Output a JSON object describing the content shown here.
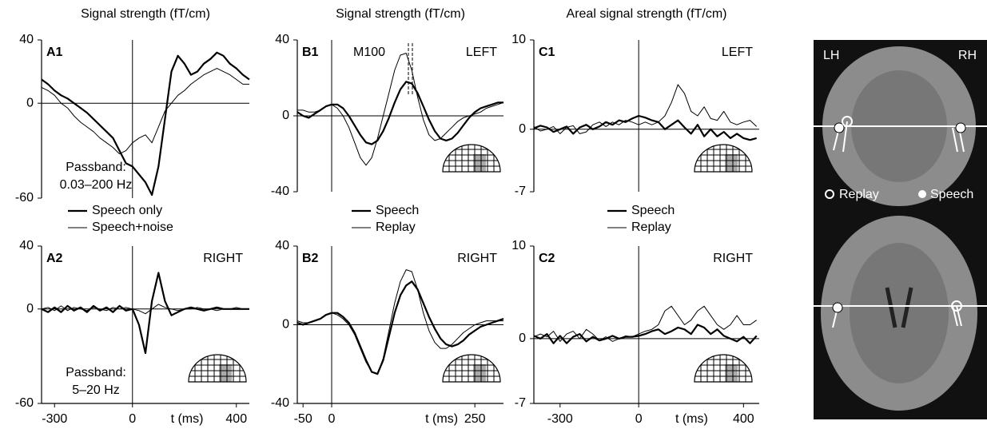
{
  "chart_data": [
    {
      "type": "line",
      "title": "Signal strength (fT/cm)",
      "panel_label": "A1",
      "passband": [
        "Passband:",
        "0.03–200 Hz"
      ],
      "x": [
        -350,
        -325,
        -300,
        -275,
        -250,
        -225,
        -200,
        -175,
        -150,
        -125,
        -100,
        -75,
        -50,
        -25,
        0,
        25,
        50,
        75,
        100,
        125,
        150,
        175,
        200,
        225,
        250,
        275,
        300,
        325,
        350,
        375,
        400,
        425,
        450
      ],
      "series": [
        {
          "name": "Speech only",
          "color": "#000000",
          "line_width": 2.2,
          "values": [
            15,
            12,
            8,
            5,
            3,
            0,
            -3,
            -6,
            -10,
            -14,
            -18,
            -22,
            -30,
            -38,
            -40,
            -45,
            -50,
            -58,
            -40,
            -10,
            20,
            30,
            25,
            18,
            20,
            25,
            28,
            32,
            30,
            25,
            22,
            18,
            15
          ]
        },
        {
          "name": "Speech+noise",
          "color": "#000000",
          "line_width": 1,
          "values": [
            10,
            8,
            5,
            0,
            -3,
            -8,
            -12,
            -15,
            -18,
            -22,
            -25,
            -28,
            -32,
            -30,
            -25,
            -22,
            -20,
            -25,
            -15,
            -5,
            0,
            5,
            8,
            12,
            15,
            18,
            20,
            22,
            20,
            18,
            15,
            12,
            12
          ]
        }
      ],
      "xlim": [
        -350,
        450
      ],
      "ylim": [
        -60,
        40
      ],
      "yticks": [
        -60,
        0,
        40
      ]
    },
    {
      "type": "line",
      "title": "Signal strength (fT/cm)",
      "panel_label": "B1",
      "side_label": "LEFT",
      "peak_label": "M100",
      "x": [
        -60,
        -50,
        -40,
        -30,
        -20,
        -10,
        0,
        10,
        20,
        30,
        40,
        50,
        60,
        70,
        80,
        90,
        100,
        110,
        120,
        130,
        140,
        150,
        160,
        170,
        180,
        190,
        200,
        210,
        220,
        230,
        240,
        250,
        260,
        270,
        280,
        290,
        300
      ],
      "series": [
        {
          "name": "Speech",
          "color": "#000000",
          "line_width": 2.2,
          "values": [
            2,
            0,
            -1,
            1,
            3,
            5,
            6,
            6,
            4,
            0,
            -5,
            -10,
            -14,
            -15,
            -13,
            -8,
            -1,
            7,
            14,
            18,
            17,
            12,
            5,
            -2,
            -8,
            -12,
            -13,
            -12,
            -9,
            -5,
            -1,
            2,
            4,
            5,
            6,
            7,
            7
          ]
        },
        {
          "name": "Replay",
          "color": "#000000",
          "line_width": 1,
          "values": [
            3,
            3,
            2,
            2,
            3,
            5,
            6,
            4,
            0,
            -6,
            -14,
            -22,
            -26,
            -22,
            -12,
            0,
            12,
            24,
            32,
            33,
            24,
            10,
            -2,
            -10,
            -13,
            -12,
            -9,
            -6,
            -3,
            -1,
            0,
            1,
            2,
            4,
            5,
            6,
            7
          ]
        }
      ],
      "xlim": [
        -60,
        300
      ],
      "ylim": [
        -40,
        40
      ],
      "yticks": [
        -40,
        0,
        40
      ]
    },
    {
      "type": "line",
      "title": "Areal signal strength (fT/cm)",
      "panel_label": "C1",
      "side_label": "LEFT",
      "x": [
        -400,
        -375,
        -350,
        -325,
        -300,
        -275,
        -250,
        -225,
        -200,
        -175,
        -150,
        -125,
        -100,
        -75,
        -50,
        -25,
        0,
        25,
        50,
        75,
        100,
        125,
        150,
        175,
        200,
        225,
        250,
        275,
        300,
        325,
        350,
        375,
        400,
        425,
        450
      ],
      "series": [
        {
          "name": "Speech",
          "color": "#000000",
          "line_width": 2.2,
          "values": [
            0.1,
            0.4,
            0.2,
            -0.3,
            0,
            0.3,
            -0.5,
            0.2,
            0.5,
            0,
            0.3,
            0.8,
            0.5,
            1,
            0.8,
            1.2,
            1.5,
            1.3,
            1,
            0.8,
            0,
            0.5,
            1,
            0.2,
            -0.5,
            0.5,
            -0.8,
            0,
            -0.8,
            -0.3,
            -1,
            -0.5,
            -1,
            -1.2,
            -1
          ]
        },
        {
          "name": "Replay",
          "color": "#000000",
          "line_width": 1,
          "values": [
            0.3,
            -0.2,
            0,
            0.3,
            -0.5,
            0.2,
            0.4,
            -0.5,
            -0.3,
            0.5,
            0.8,
            0.3,
            0.8,
            0.5,
            1,
            0.8,
            0.5,
            0.8,
            0.5,
            0.8,
            1.5,
            3,
            5,
            4,
            2,
            1.5,
            2.5,
            1.2,
            1,
            2,
            0.8,
            0.5,
            0.8,
            1,
            0.3
          ]
        }
      ],
      "xlim": [
        -400,
        460
      ],
      "ylim": [
        -7,
        10
      ],
      "yticks": [
        -7,
        0,
        10
      ]
    },
    {
      "type": "line",
      "panel_label": "A2",
      "side_label": "RIGHT",
      "passband": [
        "Passband:",
        "5–20 Hz"
      ],
      "xlabel": "t (ms)",
      "x": [
        -350,
        -325,
        -300,
        -275,
        -250,
        -225,
        -200,
        -175,
        -150,
        -125,
        -100,
        -75,
        -50,
        -25,
        0,
        25,
        50,
        75,
        100,
        125,
        150,
        175,
        200,
        225,
        250,
        275,
        300,
        325,
        350,
        375,
        400,
        425,
        450
      ],
      "series": [
        {
          "color": "#000000",
          "line_width": 2.2,
          "values": [
            0,
            -2,
            1,
            -2,
            2,
            -1,
            1,
            -2,
            2,
            -1,
            1,
            -2,
            2,
            -1,
            0,
            -10,
            -28,
            5,
            23,
            5,
            -4,
            -2,
            0,
            1,
            0,
            -1,
            0,
            1,
            0,
            0,
            0,
            0,
            0
          ]
        },
        {
          "color": "#000000",
          "line_width": 1,
          "values": [
            0,
            1,
            -1,
            2,
            -1,
            1,
            0,
            -1,
            1,
            0,
            -1,
            1,
            0,
            1,
            0,
            -1,
            -3,
            0,
            3,
            1,
            0,
            -1,
            0,
            0,
            1,
            0,
            0,
            -1,
            0,
            0,
            1,
            0,
            0
          ]
        }
      ],
      "xlim": [
        -350,
        450
      ],
      "ylim": [
        -60,
        40
      ],
      "yticks": [
        -60,
        0,
        40
      ],
      "xticks": [
        -300,
        0,
        400
      ]
    },
    {
      "type": "line",
      "panel_label": "B2",
      "side_label": "RIGHT",
      "xlabel": "t (ms)",
      "x": [
        -60,
        -50,
        -40,
        -30,
        -20,
        -10,
        0,
        10,
        20,
        30,
        40,
        50,
        60,
        70,
        80,
        90,
        100,
        110,
        120,
        130,
        140,
        150,
        160,
        170,
        180,
        190,
        200,
        210,
        220,
        230,
        240,
        250,
        260,
        270,
        280,
        290,
        300
      ],
      "series": [
        {
          "color": "#000000",
          "line_width": 2.2,
          "values": [
            1,
            0,
            1,
            2,
            3,
            5,
            6,
            6,
            4,
            1,
            -4,
            -11,
            -18,
            -24,
            -25,
            -18,
            -6,
            6,
            15,
            20,
            22,
            18,
            11,
            4,
            -2,
            -7,
            -10,
            -11,
            -10,
            -8,
            -5,
            -3,
            -1,
            0,
            1,
            2,
            3
          ]
        },
        {
          "color": "#000000",
          "line_width": 1,
          "values": [
            2,
            1,
            1,
            2,
            3,
            5,
            6,
            5,
            3,
            0,
            -5,
            -12,
            -19,
            -24,
            -25,
            -17,
            -3,
            11,
            22,
            28,
            27,
            18,
            6,
            -3,
            -9,
            -12,
            -12,
            -10,
            -7,
            -4,
            -2,
            0,
            1,
            2,
            2,
            2,
            2
          ]
        }
      ],
      "xlim": [
        -60,
        300
      ],
      "ylim": [
        -40,
        40
      ],
      "yticks": [
        -40,
        0,
        40
      ],
      "xticks": [
        -50,
        0,
        250
      ]
    },
    {
      "type": "line",
      "panel_label": "C2",
      "side_label": "RIGHT",
      "xlabel": "t (ms)",
      "x": [
        -400,
        -375,
        -350,
        -325,
        -300,
        -275,
        -250,
        -225,
        -200,
        -175,
        -150,
        -125,
        -100,
        -75,
        -50,
        -25,
        0,
        25,
        50,
        75,
        100,
        125,
        150,
        175,
        200,
        225,
        250,
        275,
        300,
        325,
        350,
        375,
        400,
        425,
        450
      ],
      "series": [
        {
          "color": "#000000",
          "line_width": 2.2,
          "values": [
            0.3,
            0,
            0.5,
            -0.5,
            0.3,
            -0.5,
            0.2,
            0.5,
            -0.3,
            0.2,
            -0.2,
            0,
            0.3,
            0,
            0.2,
            0.2,
            0.3,
            0.5,
            0.8,
            1,
            0.5,
            0.8,
            1.2,
            1,
            0.5,
            1.5,
            1.2,
            0.5,
            1,
            0.3,
            0,
            -0.3,
            0.2,
            -0.5,
            0.3
          ]
        },
        {
          "color": "#000000",
          "line_width": 1,
          "values": [
            0.2,
            0.5,
            0.2,
            0.8,
            -0.3,
            0.5,
            0.8,
            0,
            1,
            0.5,
            -0.2,
            0.2,
            -0.3,
            0,
            0.3,
            0.2,
            0.5,
            0.8,
            1,
            1.5,
            3,
            3.5,
            2.5,
            1.5,
            2,
            3,
            3.5,
            2.5,
            1.5,
            1,
            1.5,
            2.5,
            1.5,
            1.5,
            2
          ]
        }
      ],
      "xlim": [
        -400,
        460
      ],
      "ylim": [
        -7,
        10
      ],
      "yticks": [
        -7,
        0,
        10
      ],
      "xticks": [
        -300,
        0,
        400
      ]
    }
  ],
  "image_panel": {
    "left_label": "LH",
    "right_label": "RH",
    "legend": [
      "Replay",
      "Speech"
    ]
  }
}
